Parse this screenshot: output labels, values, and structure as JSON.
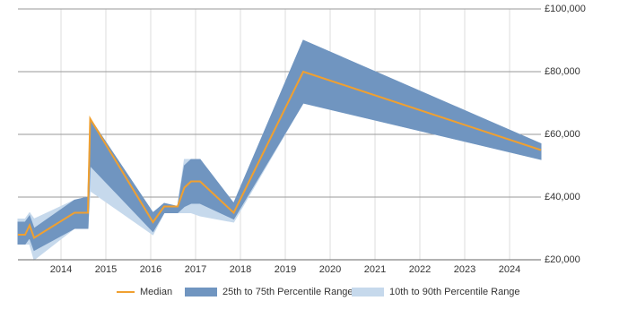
{
  "chart_data": {
    "type": "band-line",
    "x": [
      2013.04,
      2013.2,
      2013.3,
      2013.4,
      2014.3,
      2014.6,
      2014.65,
      2016.05,
      2016.3,
      2016.6,
      2016.75,
      2016.9,
      2017.1,
      2017.85,
      2019.4,
      2024.7
    ],
    "xlim": [
      2013.04,
      2024.7
    ],
    "xticks": [
      2014,
      2015,
      2016,
      2017,
      2018,
      2019,
      2020,
      2021,
      2022,
      2023,
      2024
    ],
    "ylim": [
      20000,
      100000
    ],
    "yticks": [
      {
        "value": 20000,
        "label": "£20,000"
      },
      {
        "value": 40000,
        "label": "£40,000"
      },
      {
        "value": 60000,
        "label": "£60,000"
      },
      {
        "value": 80000,
        "label": "£80,000"
      },
      {
        "value": 100000,
        "label": "£100,000"
      }
    ],
    "grid": true,
    "legend": "bottom",
    "series": [
      {
        "name": "10th to 90th Percentile Range",
        "color": "#c6d9ec",
        "low": [
          25000,
          25000,
          25000,
          20000,
          30000,
          30000,
          42000,
          28000,
          35000,
          35000,
          35000,
          35000,
          34000,
          32000,
          70000,
          52000
        ],
        "high": [
          33000,
          33000,
          35000,
          33000,
          39000,
          40000,
          65000,
          35000,
          38000,
          37000,
          52000,
          52000,
          52000,
          38000,
          90000,
          57000
        ]
      },
      {
        "name": "25th to 75th Percentile Range",
        "color": "#7095c0",
        "low": [
          25000,
          25000,
          27000,
          23000,
          30000,
          30000,
          50000,
          29000,
          35000,
          35000,
          37000,
          38000,
          38000,
          33000,
          70000,
          52000
        ],
        "high": [
          32000,
          32000,
          34000,
          30000,
          39000,
          40000,
          65000,
          35000,
          38000,
          37000,
          50000,
          52000,
          52000,
          38000,
          90000,
          57000
        ]
      },
      {
        "name": "Median",
        "color": "#f0a030",
        "values": [
          28000,
          28000,
          31000,
          27000,
          35000,
          35000,
          65000,
          32000,
          37000,
          37000,
          43000,
          45000,
          45000,
          35000,
          80000,
          55000
        ]
      }
    ]
  }
}
